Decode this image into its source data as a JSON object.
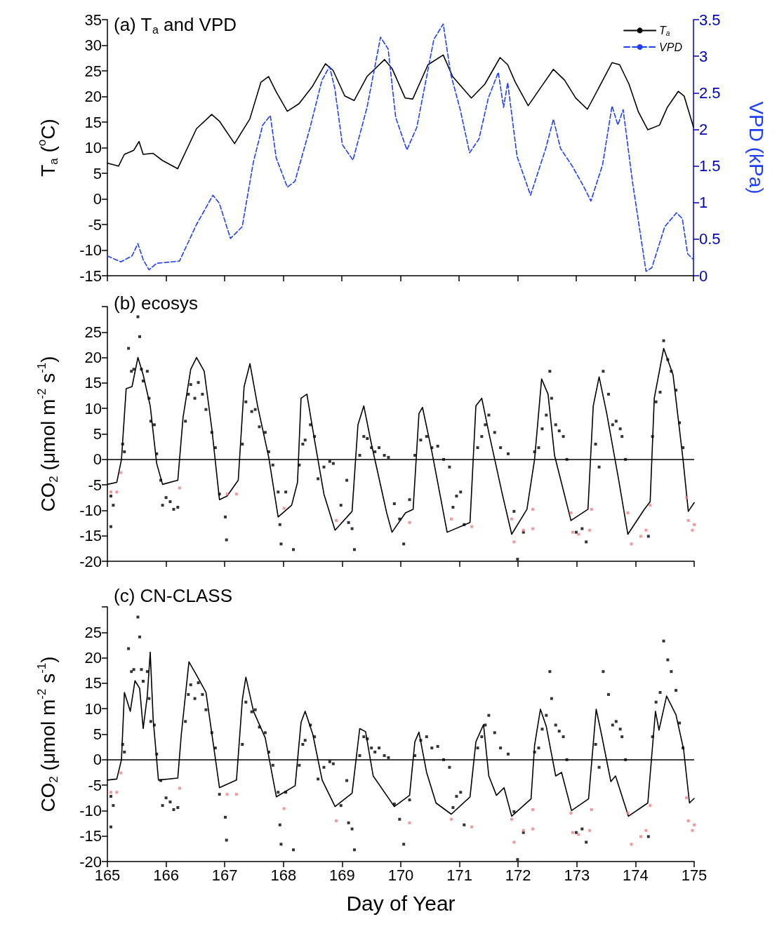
{
  "chart_data": [
    {
      "type": "line",
      "title": "(a) T$_{a}$ and VPD",
      "ylabel": "T$_{a}$ ($^{o}$C)",
      "y2label": "VPD (kPa)",
      "xlim": [
        165,
        175
      ],
      "xticks": [
        165,
        166,
        167,
        168,
        169,
        170,
        171,
        172,
        173,
        174,
        175
      ],
      "ylim": [
        -15,
        35
      ],
      "yticks": [
        -15,
        -10,
        -5,
        0,
        5,
        10,
        15,
        20,
        25,
        30,
        35
      ],
      "y2lim": [
        0,
        3.5
      ],
      "y2ticks": [
        0,
        0.5,
        1,
        1.5,
        2,
        2.5,
        3,
        3.5
      ],
      "tick_labels": "y",
      "legend": "top right",
      "series": [
        {
          "name": "T$_{a}$",
          "type": "line",
          "color": "#000000",
          "line_style": "solid",
          "marker": "none",
          "x": [
            165.0,
            165.19,
            165.29,
            165.45,
            165.54,
            165.61,
            165.78,
            165.94,
            166.2,
            166.52,
            166.78,
            166.91,
            167.17,
            167.43,
            167.62,
            167.75,
            167.88,
            168.07,
            168.27,
            168.5,
            168.72,
            168.85,
            169.05,
            169.21,
            169.43,
            169.73,
            169.86,
            170.08,
            170.21,
            170.47,
            170.73,
            170.89,
            171.21,
            171.44,
            171.7,
            171.83,
            171.96,
            172.18,
            172.41,
            172.61,
            172.8,
            172.99,
            173.19,
            173.38,
            173.61,
            173.74,
            173.9,
            174.06,
            174.22,
            174.42,
            174.55,
            174.74,
            174.84,
            175.0
          ],
          "values": [
            7.0,
            6.4,
            8.7,
            9.5,
            11.2,
            8.7,
            8.9,
            7.5,
            5.9,
            13.7,
            16.5,
            15.2,
            10.8,
            15.6,
            22.8,
            23.9,
            20.9,
            17.1,
            18.6,
            22.0,
            26.4,
            25.1,
            20.1,
            19.2,
            23.9,
            27.2,
            25.4,
            19.7,
            19.5,
            26.2,
            28.1,
            23.9,
            19.7,
            22.4,
            27.6,
            26.2,
            22.8,
            18.2,
            22.0,
            25.3,
            23.2,
            19.7,
            17.5,
            21.6,
            26.6,
            26.2,
            22.4,
            17.0,
            13.5,
            14.4,
            17.8,
            21.0,
            20.1,
            14.0
          ]
        },
        {
          "name": "VPD",
          "type": "line",
          "axis": "y2",
          "color": "#1f3fff",
          "line_style": "dashed",
          "marker": "none",
          "x": [
            165.0,
            165.23,
            165.42,
            165.52,
            165.61,
            165.71,
            165.84,
            166.23,
            166.52,
            166.8,
            166.91,
            167.1,
            167.3,
            167.49,
            167.65,
            167.78,
            167.88,
            168.07,
            168.2,
            168.46,
            168.66,
            168.79,
            168.88,
            169.01,
            169.19,
            169.43,
            169.66,
            169.79,
            169.92,
            170.11,
            170.28,
            170.57,
            170.73,
            170.86,
            171.02,
            171.18,
            171.34,
            171.5,
            171.67,
            171.76,
            171.83,
            171.99,
            172.22,
            172.48,
            172.61,
            172.73,
            172.93,
            173.12,
            173.25,
            173.45,
            173.61,
            173.71,
            173.8,
            173.96,
            174.19,
            174.29,
            174.51,
            174.71,
            174.81,
            174.9,
            175.0
          ],
          "values": [
            0.27,
            0.19,
            0.27,
            0.44,
            0.22,
            0.08,
            0.17,
            0.2,
            0.7,
            1.1,
            0.99,
            0.51,
            0.67,
            1.55,
            2.06,
            2.19,
            1.61,
            1.21,
            1.29,
            2.03,
            2.67,
            2.86,
            2.56,
            1.79,
            1.58,
            2.3,
            3.26,
            3.1,
            2.16,
            1.72,
            2.03,
            3.23,
            3.44,
            2.75,
            2.27,
            1.68,
            1.87,
            2.43,
            2.78,
            2.3,
            2.64,
            1.63,
            1.1,
            1.74,
            2.14,
            1.74,
            1.5,
            1.23,
            1.02,
            1.52,
            2.32,
            2.06,
            2.27,
            1.28,
            0.06,
            0.11,
            0.67,
            0.86,
            0.78,
            0.3,
            0.22
          ]
        }
      ]
    },
    {
      "type": "line",
      "title": "(b) ecosys",
      "ylabel": "CO$_{2}$ (μmol m$^{-2}$ s$^{-1}$)",
      "xlim": [
        165,
        175
      ],
      "xticks": [
        165,
        166,
        167,
        168,
        169,
        170,
        171,
        172,
        173,
        174,
        175
      ],
      "ylim": [
        -20,
        30
      ],
      "yticks": [
        -20,
        -15,
        -10,
        -5,
        0,
        5,
        10,
        15,
        20,
        25,
        {
          "value": 30,
          "label": null
        }
      ],
      "tick_labels": "y",
      "ref_lines": [
        {
          "axis": "y",
          "value": 0,
          "color": "#000000"
        }
      ],
      "series": [
        {
          "type": "line",
          "color": "#000000",
          "line_style": "solid",
          "marker": "none",
          "x": [
            165.0,
            165.16,
            165.24,
            165.32,
            165.42,
            165.52,
            165.61,
            165.73,
            165.84,
            165.94,
            166.2,
            166.29,
            166.42,
            166.52,
            166.65,
            166.78,
            166.91,
            167.04,
            167.23,
            167.33,
            167.43,
            167.56,
            167.75,
            167.91,
            168.14,
            168.24,
            168.3,
            168.4,
            168.53,
            168.69,
            168.88,
            169.17,
            169.27,
            169.37,
            169.5,
            169.76,
            169.85,
            170.08,
            170.21,
            170.31,
            170.37,
            170.53,
            170.79,
            171.18,
            171.28,
            171.38,
            171.5,
            171.73,
            171.89,
            172.15,
            172.28,
            172.4,
            172.51,
            172.62,
            172.9,
            173.19,
            173.28,
            173.38,
            173.51,
            173.71,
            173.87,
            174.15,
            174.25,
            174.32,
            174.48,
            174.64,
            174.81,
            174.9,
            175.0
          ],
          "values": [
            -4.9,
            -4.5,
            0,
            13.9,
            14.3,
            20.0,
            16.6,
            10.5,
            -0.8,
            -4.9,
            -4.1,
            8.3,
            17.7,
            20.0,
            17.3,
            6.0,
            -7.9,
            -7.2,
            -4.1,
            14.3,
            18.8,
            10.5,
            0.4,
            -11.3,
            -9.0,
            -4.5,
            12.0,
            12.8,
            3.8,
            -6.8,
            -13.9,
            -10.2,
            6.8,
            10.5,
            3.0,
            -10.5,
            -14.3,
            -10.5,
            -9.8,
            9.0,
            10.2,
            1.5,
            -14.3,
            -12.4,
            10.5,
            12.0,
            5.3,
            -6.8,
            -14.7,
            -9.8,
            0,
            15.8,
            12.8,
            0.8,
            -12.0,
            -9.8,
            10.5,
            16.2,
            9.0,
            -3.8,
            -14.7,
            -9.8,
            -8.3,
            12.0,
            21.8,
            16.6,
            0,
            -10.2,
            -8.5
          ]
        },
        {
          "type": "scatter",
          "color": "#000000",
          "marker": "square",
          "x": [
            165.06,
            165.1,
            165.06,
            165.26,
            165.29,
            165.36,
            165.41,
            165.45,
            165.52,
            165.55,
            165.58,
            165.61,
            165.68,
            165.71,
            165.74,
            165.8,
            165.84,
            165.91,
            165.94,
            166.0,
            166.07,
            166.13,
            166.2,
            166.33,
            166.38,
            166.42,
            166.49,
            166.55,
            166.62,
            166.68,
            166.78,
            166.84,
            166.91,
            167.01,
            167.03,
            167.3,
            167.36,
            167.46,
            167.52,
            167.59,
            167.69,
            167.75,
            167.82,
            167.91,
            167.94,
            167.96,
            168.04,
            168.17,
            168.27,
            168.33,
            168.37,
            168.46,
            168.53,
            168.59,
            168.69,
            168.79,
            168.85,
            168.98,
            169.08,
            169.11,
            169.17,
            169.21,
            169.3,
            169.37,
            169.43,
            169.5,
            169.56,
            169.63,
            169.72,
            169.79,
            169.89,
            169.98,
            170.05,
            170.15,
            170.24,
            170.34,
            170.44,
            170.53,
            170.63,
            170.73,
            170.83,
            170.89,
            170.95,
            171.02,
            171.08,
            171.31,
            171.38,
            171.44,
            171.5,
            171.6,
            171.7,
            171.83,
            171.93,
            171.99,
            172.09,
            172.28,
            172.35,
            172.41,
            172.48,
            172.54,
            172.57,
            172.64,
            172.7,
            172.77,
            172.83,
            172.99,
            173.09,
            173.16,
            173.32,
            173.38,
            173.45,
            173.54,
            173.61,
            173.67,
            173.74,
            173.77,
            173.83,
            174.22,
            174.29,
            174.35,
            174.42,
            174.48,
            174.55,
            174.61,
            174.69,
            174.75,
            174.81
          ],
          "values": [
            -7.2,
            -9.0,
            -13.2,
            3.0,
            1.5,
            21.8,
            17.3,
            17.7,
            28.0,
            24.1,
            17.7,
            15.4,
            17.3,
            12.0,
            7.5,
            6.8,
            1.1,
            -4.1,
            -9.0,
            -7.5,
            -8.3,
            -9.8,
            -9.4,
            7.5,
            12.8,
            14.7,
            12.0,
            15.1,
            12.8,
            9.8,
            5.3,
            2.3,
            -6.8,
            -11.3,
            -15.8,
            3.0,
            11.3,
            9.4,
            9.8,
            6.4,
            5.3,
            1.5,
            -1.1,
            -6.4,
            -12.8,
            -16.6,
            -6.4,
            -17.7,
            -1.1,
            3.0,
            3.8,
            6.8,
            4.5,
            -3.8,
            -1.5,
            -0.4,
            -0.8,
            -9.0,
            -4.1,
            -12.4,
            -13.6,
            -17.7,
            0.8,
            4.5,
            4.1,
            2.3,
            1.5,
            2.3,
            0.8,
            0.4,
            -8.7,
            -11.7,
            -16.6,
            -7.9,
            0.8,
            3.8,
            4.5,
            2.3,
            2.6,
            0,
            -1.5,
            -9.4,
            -7.2,
            -6.4,
            -12.8,
            2.3,
            4.5,
            6.8,
            8.7,
            5.3,
            2.3,
            1.1,
            -10.2,
            -19.6,
            -14.3,
            1.5,
            2.3,
            6.0,
            8.7,
            17.3,
            12.0,
            6.8,
            5.6,
            4.5,
            0,
            -14.3,
            -13.6,
            -16.2,
            3.0,
            -1.5,
            17.3,
            12.8,
            6.8,
            7.5,
            6.0,
            4.5,
            0,
            -15.1,
            4.5,
            11.3,
            13.2,
            23.3,
            19.6,
            17.3,
            13.6,
            7.2,
            2.3
          ]
        },
        {
          "type": "scatter",
          "color": "#f08080",
          "marker": "square",
          "x": [
            165.06,
            165.16,
            165.23,
            166.23,
            167.04,
            167.2,
            168.01,
            168.9,
            170.15,
            170.86,
            171.21,
            171.89,
            171.93,
            172.09,
            172.25,
            172.25,
            172.9,
            172.93,
            173.03,
            173.22,
            173.25,
            173.87,
            173.93,
            174.09,
            174.18,
            174.25,
            174.87,
            174.9,
            174.97,
            175.0
          ],
          "values": [
            -6.4,
            -6.4,
            -2.6,
            -5.6,
            -6.8,
            -6.8,
            -9.6,
            -12.0,
            -12.4,
            -11.7,
            -13.2,
            -11.7,
            -16.2,
            -13.9,
            -13.6,
            -9.8,
            -10.5,
            -14.3,
            -14.7,
            -13.9,
            -9.8,
            -10.5,
            -16.6,
            -15.1,
            -13.9,
            -9.0,
            -7.5,
            -12.0,
            -13.9,
            -12.8
          ]
        }
      ]
    },
    {
      "type": "line",
      "title": "(c) CN-CLASS",
      "ylabel": "CO$_{2}$ (μmol m$^{-2}$ s$^{-1}$)",
      "xlabel": "Day of Year",
      "xlim": [
        165,
        175
      ],
      "xticks": [
        165,
        166,
        167,
        168,
        169,
        170,
        171,
        172,
        173,
        174,
        175
      ],
      "ylim": [
        -20,
        30
      ],
      "yticks": [
        -20,
        -15,
        -10,
        -5,
        0,
        5,
        10,
        15,
        20,
        25,
        {
          "value": 30,
          "label": null
        }
      ],
      "ref_lines": [
        {
          "axis": "y",
          "value": 0,
          "color": "#000000"
        }
      ],
      "series": [
        {
          "type": "line",
          "color": "#000000",
          "line_style": "solid",
          "marker": "none",
          "x": [
            165.0,
            165.16,
            165.24,
            165.29,
            165.39,
            165.47,
            165.55,
            165.61,
            165.68,
            165.73,
            165.78,
            165.87,
            166.2,
            166.26,
            166.39,
            166.52,
            166.68,
            166.8,
            166.91,
            167.2,
            167.3,
            167.36,
            167.49,
            167.69,
            167.88,
            168.2,
            168.3,
            168.37,
            168.5,
            168.66,
            168.88,
            169.17,
            169.3,
            169.4,
            169.53,
            169.89,
            170.15,
            170.24,
            170.31,
            170.44,
            170.6,
            170.86,
            171.18,
            171.28,
            171.41,
            171.5,
            171.63,
            171.76,
            171.89,
            172.22,
            172.28,
            172.38,
            172.48,
            172.64,
            172.74,
            172.91,
            173.2,
            173.33,
            173.42,
            173.58,
            173.66,
            173.88,
            174.21,
            174.34,
            174.4,
            174.53,
            174.69,
            174.82,
            174.92,
            175.0
          ],
          "values": [
            -4.0,
            -3.8,
            0,
            13.2,
            9.5,
            15.5,
            14.0,
            6.1,
            12.5,
            21.1,
            8.0,
            -4.0,
            -3.6,
            5.0,
            19.2,
            16.6,
            13.2,
            3.5,
            -5.5,
            -4.0,
            11.8,
            16.2,
            9.5,
            4.3,
            -7.3,
            -5.1,
            7.3,
            9.5,
            5.0,
            -4.0,
            -9.2,
            -6.6,
            6.1,
            5.5,
            -3.2,
            -9.2,
            -7.0,
            3.5,
            5.4,
            -2.5,
            -8.5,
            -10.7,
            -7.3,
            3.5,
            6.9,
            -3.2,
            -7.0,
            -5.5,
            -11.1,
            -7.7,
            2.8,
            9.9,
            6.5,
            -3.2,
            -2.5,
            -10.0,
            -7.7,
            9.9,
            5.0,
            -4.3,
            -3.2,
            -11.1,
            -8.5,
            9.5,
            5.8,
            12.5,
            8.8,
            2.0,
            -8.5,
            -7.6
          ]
        },
        {
          "type": "scatter",
          "color": "#000000",
          "marker": "square",
          "x": [
            165.06,
            165.1,
            165.06,
            165.26,
            165.29,
            165.36,
            165.41,
            165.45,
            165.52,
            165.55,
            165.58,
            165.61,
            165.68,
            165.71,
            165.74,
            165.8,
            165.84,
            165.91,
            165.94,
            166.0,
            166.07,
            166.13,
            166.2,
            166.33,
            166.38,
            166.42,
            166.49,
            166.55,
            166.62,
            166.68,
            166.78,
            166.84,
            166.91,
            167.01,
            167.03,
            167.3,
            167.36,
            167.46,
            167.52,
            167.59,
            167.69,
            167.75,
            167.82,
            167.91,
            167.94,
            167.96,
            168.04,
            168.17,
            168.27,
            168.33,
            168.37,
            168.46,
            168.53,
            168.59,
            168.69,
            168.79,
            168.85,
            168.98,
            169.08,
            169.11,
            169.17,
            169.21,
            169.3,
            169.37,
            169.43,
            169.5,
            169.56,
            169.63,
            169.72,
            169.79,
            169.89,
            169.98,
            170.05,
            170.15,
            170.24,
            170.34,
            170.44,
            170.53,
            170.63,
            170.73,
            170.83,
            170.89,
            170.95,
            171.02,
            171.08,
            171.31,
            171.38,
            171.44,
            171.5,
            171.6,
            171.7,
            171.83,
            171.93,
            171.99,
            172.09,
            172.28,
            172.35,
            172.41,
            172.48,
            172.54,
            172.57,
            172.64,
            172.7,
            172.77,
            172.83,
            172.99,
            173.09,
            173.16,
            173.32,
            173.38,
            173.45,
            173.54,
            173.61,
            173.67,
            173.74,
            173.77,
            173.83,
            174.22,
            174.29,
            174.35,
            174.42,
            174.48,
            174.55,
            174.61,
            174.69,
            174.75,
            174.81
          ],
          "values": [
            -7.2,
            -9.0,
            -13.2,
            3.0,
            1.5,
            21.8,
            17.3,
            17.7,
            28.0,
            24.1,
            17.7,
            15.4,
            17.3,
            12.0,
            7.5,
            6.8,
            1.1,
            -4.1,
            -9.0,
            -7.5,
            -8.3,
            -9.8,
            -9.4,
            7.5,
            12.8,
            14.7,
            12.0,
            15.1,
            12.8,
            9.8,
            5.3,
            2.3,
            -6.8,
            -11.3,
            -15.8,
            3.0,
            11.3,
            9.4,
            9.8,
            6.4,
            5.3,
            1.5,
            -1.1,
            -6.4,
            -12.8,
            -16.6,
            -6.4,
            -17.7,
            -1.1,
            3.0,
            3.8,
            6.8,
            4.5,
            -3.8,
            -1.5,
            -0.4,
            -0.8,
            -9.0,
            -4.1,
            -12.4,
            -13.6,
            -17.7,
            0.8,
            4.5,
            4.1,
            2.3,
            1.5,
            2.3,
            0.8,
            0.4,
            -8.7,
            -11.7,
            -16.6,
            -7.9,
            0.8,
            3.8,
            4.5,
            2.3,
            2.6,
            0,
            -1.5,
            -9.4,
            -7.2,
            -6.4,
            -12.8,
            2.3,
            4.5,
            6.8,
            8.7,
            5.3,
            2.3,
            1.1,
            -10.2,
            -19.6,
            -14.3,
            1.5,
            2.3,
            6.0,
            8.7,
            17.3,
            12.0,
            6.8,
            5.6,
            4.5,
            0,
            -14.3,
            -13.6,
            -16.2,
            3.0,
            -1.5,
            17.3,
            12.8,
            6.8,
            7.5,
            6.0,
            4.5,
            0,
            -15.1,
            4.5,
            11.3,
            13.2,
            23.3,
            19.6,
            17.3,
            13.6,
            7.2,
            2.3
          ]
        },
        {
          "type": "scatter",
          "color": "#f08080",
          "marker": "square",
          "x": [
            165.06,
            165.16,
            165.23,
            166.23,
            167.04,
            167.2,
            168.01,
            168.9,
            170.15,
            170.86,
            171.21,
            171.89,
            171.93,
            172.09,
            172.25,
            172.25,
            172.9,
            172.93,
            173.03,
            173.22,
            173.25,
            173.87,
            173.93,
            174.09,
            174.18,
            174.25,
            174.87,
            174.9,
            174.97,
            175.0
          ],
          "values": [
            -6.4,
            -6.4,
            -2.6,
            -5.6,
            -6.8,
            -6.8,
            -9.6,
            -12.0,
            -12.4,
            -11.7,
            -13.2,
            -11.7,
            -16.2,
            -13.9,
            -13.6,
            -9.8,
            -10.5,
            -14.3,
            -14.7,
            -13.9,
            -9.8,
            -10.5,
            -16.6,
            -15.1,
            -13.9,
            -9.0,
            -7.5,
            -12.0,
            -13.9,
            -12.8
          ]
        }
      ]
    }
  ]
}
